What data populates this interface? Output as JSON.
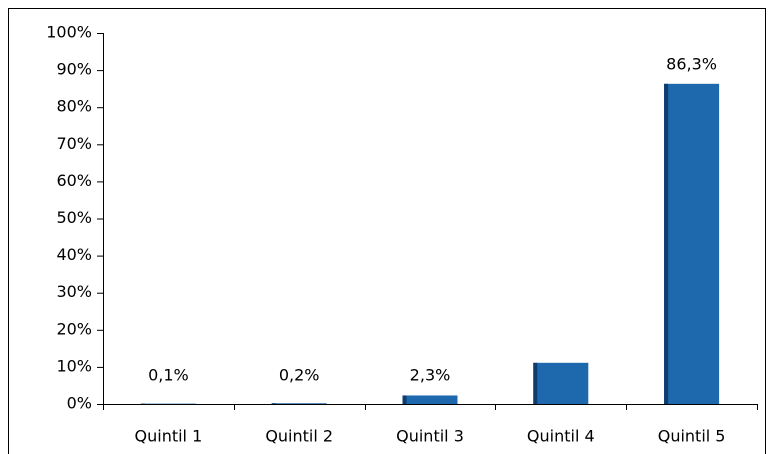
{
  "chart_data": {
    "type": "bar",
    "categories": [
      "Quintil 1",
      "Quintil 2",
      "Quintil 3",
      "Quintil 4",
      "Quintil 5"
    ],
    "values": [
      0.1,
      0.2,
      2.3,
      11.1,
      86.3
    ],
    "value_labels": [
      "0,1%",
      "0,2%",
      "2,3%",
      null,
      "86,3%"
    ],
    "color": "#1e68ad",
    "ylim": [
      0,
      100
    ],
    "yticks": [
      {
        "value": 0,
        "label": "0%"
      },
      {
        "value": 10,
        "label": "10%"
      },
      {
        "value": 20,
        "label": "20%"
      },
      {
        "value": 30,
        "label": "30%"
      },
      {
        "value": 40,
        "label": "40%"
      },
      {
        "value": 50,
        "label": "50%"
      },
      {
        "value": 60,
        "label": "60%"
      },
      {
        "value": 70,
        "label": "70%"
      },
      {
        "value": 80,
        "label": "80%"
      },
      {
        "value": 90,
        "label": "90%"
      },
      {
        "value": 100,
        "label": "100%"
      }
    ],
    "grid": false
  }
}
